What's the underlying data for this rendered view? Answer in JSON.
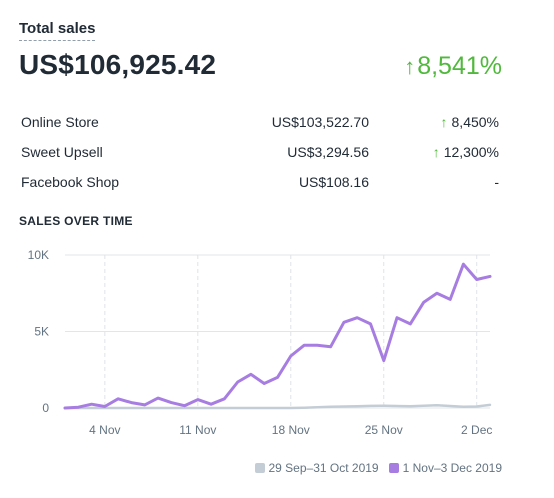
{
  "card": {
    "title": "Total sales",
    "total": "US$106,925.42",
    "total_change": "8,541%",
    "up_glyph": "↑"
  },
  "breakdown": [
    {
      "name": "Online Store",
      "amount": "US$103,522.70",
      "change": "8,450%",
      "trend": "up"
    },
    {
      "name": "Sweet Upsell",
      "amount": "US$3,294.56",
      "change": "12,300%",
      "trend": "up"
    },
    {
      "name": "Facebook Shop",
      "amount": "US$108.16",
      "change": "-",
      "trend": "none"
    }
  ],
  "section_title": "SALES OVER TIME",
  "colors": {
    "accent_up": "#50b83c",
    "current_series": "#a77de2",
    "previous_series": "#c4cdd5"
  },
  "chart_data": {
    "type": "line",
    "title": "SALES OVER TIME",
    "xlabel": "",
    "ylabel": "",
    "ylim": [
      0,
      10000
    ],
    "yticks": [
      0,
      5000,
      10000
    ],
    "ytick_labels": [
      "0",
      "5K",
      "10K"
    ],
    "xtick_labels": [
      "4 Nov",
      "11 Nov",
      "18 Nov",
      "25 Nov",
      "2 Dec"
    ],
    "xtick_index": [
      3,
      10,
      17,
      24,
      31
    ],
    "grid": true,
    "legend_position": "bottom-right",
    "series": [
      {
        "name": "29 Sep–31 Oct 2019",
        "color": "#c4cdd5",
        "values": [
          0,
          0,
          0,
          0,
          0,
          0,
          0,
          0,
          0,
          0,
          0,
          0,
          0,
          0,
          0,
          0,
          0,
          0,
          20,
          50,
          80,
          100,
          120,
          140,
          150,
          130,
          110,
          150,
          180,
          130,
          80,
          100,
          200
        ]
      },
      {
        "name": "1 Nov–3 Dec 2019",
        "color": "#a77de2",
        "values": [
          0,
          50,
          250,
          100,
          600,
          350,
          200,
          650,
          350,
          150,
          550,
          250,
          600,
          1700,
          2200,
          1600,
          2000,
          3400,
          4100,
          4100,
          4000,
          5600,
          5900,
          5500,
          3100,
          5900,
          5500,
          6900,
          7500,
          7100,
          9400,
          8400,
          8600
        ]
      }
    ]
  }
}
